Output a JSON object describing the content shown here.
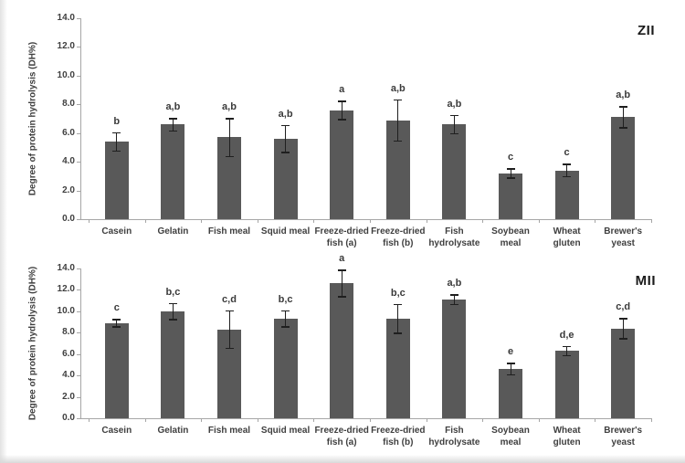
{
  "figure": {
    "background_color": "#ffffff",
    "bar_color": "#595959",
    "axis_color": "#a6a6a6",
    "text_color": "#3f3f3f",
    "error_bar_color": "#1f1f1f"
  },
  "chart_data": [
    {
      "type": "bar",
      "title": "ZII",
      "xlabel": "",
      "ylabel": "Degree of protein hydrolysis  (DH%)",
      "ylim": [
        0.0,
        14.0
      ],
      "ytick_step": 2.0,
      "ytick_labels": [
        "0.0",
        "2.0",
        "4.0",
        "6.0",
        "8.0",
        "10.0",
        "12.0",
        "14.0"
      ],
      "grid": false,
      "legend": "none",
      "categories": [
        "Casein",
        "Gelatin",
        "Fish meal",
        "Squid meal",
        "Freeze-dried fish (a)",
        "Freeze-dried fish (b)",
        "Fish hydrolysate",
        "Soybean meal",
        "Wheat gluten",
        "Brewer's yeast"
      ],
      "category_lines": [
        [
          "Casein"
        ],
        [
          "Gelatin"
        ],
        [
          "Fish meal"
        ],
        [
          "Squid meal"
        ],
        [
          "Freeze-dried",
          "fish (a)"
        ],
        [
          "Freeze-dried",
          "fish (b)"
        ],
        [
          "Fish",
          "hydrolysate"
        ],
        [
          "Soybean",
          "meal"
        ],
        [
          "Wheat",
          "gluten"
        ],
        [
          "Brewer's",
          "yeast"
        ]
      ],
      "values": [
        5.4,
        6.6,
        5.7,
        5.6,
        7.6,
        6.9,
        6.6,
        3.2,
        3.4,
        7.1
      ],
      "errors": [
        0.6,
        0.4,
        1.3,
        0.9,
        0.6,
        1.4,
        0.6,
        0.3,
        0.4,
        0.7
      ],
      "sig_labels": [
        "b",
        "a,b",
        "a,b",
        "a,b",
        "a",
        "a,b",
        "a,b",
        "c",
        "c",
        "a,b"
      ]
    },
    {
      "type": "bar",
      "title": "MII",
      "xlabel": "",
      "ylabel": "Degree of protein hydrolysis  (DH%)",
      "ylim": [
        0.0,
        14.0
      ],
      "ytick_step": 2.0,
      "ytick_labels": [
        "0.0",
        "2.0",
        "4.0",
        "6.0",
        "8.0",
        "10.0",
        "12.0",
        "14.0"
      ],
      "grid": false,
      "legend": "none",
      "categories": [
        "Casein",
        "Gelatin",
        "Fish meal",
        "Squid meal",
        "Freeze-dried fish (a)",
        "Freeze-dried fish (b)",
        "Fish hydrolysate",
        "Soybean meal",
        "Wheat gluten",
        "Brewer's yeast"
      ],
      "category_lines": [
        [
          "Casein"
        ],
        [
          "Gelatin"
        ],
        [
          "Fish meal"
        ],
        [
          "Squid meal"
        ],
        [
          "Freeze-dried",
          "fish (a)"
        ],
        [
          "Freeze-dried",
          "fish (b)"
        ],
        [
          "Fish",
          "hydrolysate"
        ],
        [
          "Soybean",
          "meal"
        ],
        [
          "Wheat",
          "gluten"
        ],
        [
          "Brewer's",
          "yeast"
        ]
      ],
      "values": [
        8.9,
        10.0,
        8.3,
        9.3,
        12.6,
        9.3,
        11.1,
        4.6,
        6.3,
        8.4
      ],
      "errors": [
        0.3,
        0.7,
        1.7,
        0.7,
        1.2,
        1.3,
        0.4,
        0.5,
        0.4,
        0.9
      ],
      "sig_labels": [
        "c",
        "b,c",
        "c,d",
        "b,c",
        "a",
        "b,c",
        "a,b",
        "e",
        "d,e",
        "c,d"
      ]
    }
  ]
}
